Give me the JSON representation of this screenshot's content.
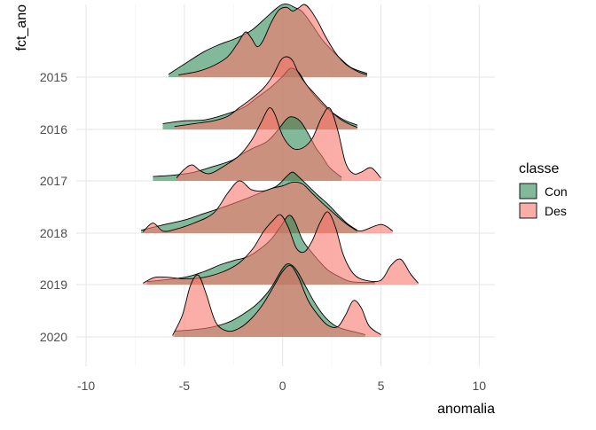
{
  "chart_data": {
    "type": "area",
    "subtype": "ridgeline-density",
    "xlabel": "anomalia",
    "ylabel": "fct_ano",
    "xlim": [
      -10.5,
      10.8
    ],
    "x_ticks": [
      -10,
      -5,
      0,
      5,
      10
    ],
    "x_tick_labels": [
      "-10",
      "-5",
      "0",
      "5",
      "10"
    ],
    "categories": [
      "2015",
      "2016",
      "2017",
      "2018",
      "2019",
      "2020"
    ],
    "grid": true,
    "legend": {
      "title": "classe",
      "position": "right",
      "entries": [
        {
          "label": "Con",
          "color": "#2e8b57"
        },
        {
          "label": "Des",
          "color": "#f8766d"
        }
      ]
    },
    "series": [
      {
        "name": "Con",
        "color": "#2e8b57",
        "ridges": [
          {
            "category": "2015",
            "x": [
              -5.8,
              -5.0,
              -4.0,
              -3.2,
              -2.5,
              -2.0,
              -1.5,
              -0.8,
              -0.3,
              0.0,
              0.3,
              0.6,
              1.0,
              1.5,
              2.0,
              2.5,
              3.0,
              3.5,
              4.3
            ],
            "density": [
              0.04,
              0.18,
              0.35,
              0.45,
              0.52,
              0.58,
              0.66,
              0.83,
              0.95,
              1.0,
              1.0,
              0.96,
              0.9,
              0.72,
              0.52,
              0.37,
              0.24,
              0.13,
              0.05
            ]
          },
          {
            "category": "2016",
            "x": [
              -6.1,
              -5.0,
              -4.0,
              -3.0,
              -2.0,
              -1.3,
              -0.6,
              0.0,
              0.4,
              0.8,
              1.2,
              1.7,
              2.2,
              2.7,
              3.2,
              3.8
            ],
            "density": [
              0.08,
              0.12,
              0.13,
              0.2,
              0.3,
              0.44,
              0.58,
              0.73,
              0.84,
              0.79,
              0.62,
              0.44,
              0.3,
              0.2,
              0.12,
              0.06
            ]
          },
          {
            "category": "2017",
            "x": [
              -6.6,
              -5.5,
              -4.5,
              -3.5,
              -2.6,
              -2.0,
              -1.5,
              -0.8,
              -0.3,
              0.2,
              0.5,
              0.9,
              1.3,
              1.7,
              2.0,
              2.4,
              3.0
            ],
            "density": [
              0.06,
              0.08,
              0.12,
              0.2,
              0.28,
              0.38,
              0.45,
              0.54,
              0.68,
              0.85,
              0.88,
              0.82,
              0.65,
              0.45,
              0.34,
              0.18,
              0.05
            ]
          },
          {
            "category": "2018",
            "x": [
              -7.2,
              -6.0,
              -5.0,
              -4.0,
              -3.0,
              -2.0,
              -1.0,
              -0.3,
              0.2,
              0.5,
              0.8,
              1.3,
              1.8,
              2.3,
              2.8,
              3.3,
              3.8
            ],
            "density": [
              0.04,
              0.12,
              0.18,
              0.27,
              0.36,
              0.46,
              0.57,
              0.65,
              0.78,
              0.84,
              0.78,
              0.65,
              0.52,
              0.4,
              0.26,
              0.13,
              0.04
            ]
          },
          {
            "category": "2019",
            "x": [
              -6.9,
              -5.0,
              -4.0,
              -3.2,
              -2.5,
              -1.8,
              -1.2,
              -0.6,
              -0.1,
              0.3,
              0.6,
              1.0,
              1.4,
              1.8,
              2.3,
              2.8,
              3.5,
              4.7
            ],
            "density": [
              0.04,
              0.1,
              0.18,
              0.27,
              0.33,
              0.38,
              0.48,
              0.62,
              0.8,
              0.95,
              0.88,
              0.62,
              0.47,
              0.34,
              0.2,
              0.12,
              0.04,
              0.03
            ]
          },
          {
            "category": "2020",
            "x": [
              -5.5,
              -4.5,
              -3.5,
              -2.6,
              -1.8,
              -1.2,
              -0.6,
              -0.1,
              0.2,
              0.5,
              0.8,
              1.2,
              1.7,
              2.2,
              2.7,
              3.2,
              3.8,
              4.2
            ],
            "density": [
              0.08,
              0.1,
              0.14,
              0.22,
              0.35,
              0.48,
              0.67,
              0.9,
              1.0,
              0.98,
              0.88,
              0.68,
              0.44,
              0.26,
              0.15,
              0.1,
              0.06,
              0.03
            ]
          }
        ]
      },
      {
        "name": "Des",
        "color": "#f8766d",
        "ridges": [
          {
            "category": "2015",
            "x": [
              -5.3,
              -4.3,
              -3.5,
              -2.8,
              -2.3,
              -1.9,
              -1.6,
              -1.3,
              -1.0,
              -0.6,
              -0.2,
              0.2,
              0.5,
              0.8,
              1.1,
              1.4,
              1.8,
              2.2,
              2.7,
              3.2,
              3.8,
              4.3
            ],
            "density": [
              0.03,
              0.08,
              0.16,
              0.28,
              0.46,
              0.62,
              0.54,
              0.42,
              0.5,
              0.74,
              0.92,
              0.96,
              0.91,
              0.95,
              1.0,
              0.93,
              0.76,
              0.55,
              0.33,
              0.18,
              0.08,
              0.03
            ]
          },
          {
            "category": "2016",
            "x": [
              -5.5,
              -4.5,
              -3.5,
              -2.8,
              -2.2,
              -1.6,
              -1.0,
              -0.5,
              -0.1,
              0.2,
              0.5,
              0.8,
              1.2,
              1.6,
              2.0,
              2.5,
              3.0,
              3.5,
              3.8
            ],
            "density": [
              0.04,
              0.08,
              0.12,
              0.18,
              0.3,
              0.42,
              0.56,
              0.74,
              0.95,
              1.0,
              0.95,
              0.78,
              0.62,
              0.5,
              0.38,
              0.24,
              0.13,
              0.06,
              0.03
            ]
          },
          {
            "category": "2017",
            "x": [
              -5.4,
              -5.0,
              -4.6,
              -4.2,
              -3.7,
              -3.0,
              -2.2,
              -1.6,
              -1.1,
              -0.7,
              -0.4,
              0.0,
              0.5,
              1.0,
              1.5,
              2.0,
              2.4,
              2.8,
              3.2,
              3.6,
              4.0,
              4.5,
              5.0
            ],
            "density": [
              0.04,
              0.16,
              0.22,
              0.14,
              0.1,
              0.2,
              0.35,
              0.55,
              0.8,
              1.0,
              0.92,
              0.62,
              0.45,
              0.45,
              0.58,
              0.88,
              1.0,
              0.7,
              0.25,
              0.1,
              0.12,
              0.18,
              0.04
            ]
          },
          {
            "category": "2018",
            "x": [
              -7.1,
              -6.6,
              -6.1,
              -5.5,
              -4.5,
              -3.5,
              -2.8,
              -2.2,
              -1.6,
              -1.0,
              -0.5,
              0.0,
              0.5,
              1.0,
              1.5,
              2.0,
              2.5,
              3.0,
              3.5,
              4.0,
              5.0,
              5.6
            ],
            "density": [
              0.02,
              0.14,
              0.03,
              0.05,
              0.14,
              0.28,
              0.55,
              0.72,
              0.6,
              0.58,
              0.62,
              0.65,
              0.7,
              0.68,
              0.55,
              0.42,
              0.3,
              0.18,
              0.08,
              0.03,
              0.12,
              0.03
            ]
          },
          {
            "category": "2019",
            "x": [
              -7.1,
              -6.5,
              -5.8,
              -5.0,
              -4.0,
              -3.0,
              -2.2,
              -1.5,
              -1.0,
              -0.5,
              -0.1,
              0.3,
              0.7,
              1.1,
              1.5,
              1.9,
              2.3,
              2.7,
              3.1,
              3.6,
              4.2,
              5.0,
              5.5,
              6.0,
              6.5,
              6.9
            ],
            "density": [
              0.02,
              0.1,
              0.1,
              0.08,
              0.1,
              0.18,
              0.3,
              0.5,
              0.72,
              0.88,
              0.96,
              0.78,
              0.5,
              0.45,
              0.6,
              0.85,
              1.0,
              0.78,
              0.4,
              0.15,
              0.06,
              0.06,
              0.26,
              0.35,
              0.15,
              0.02
            ]
          },
          {
            "category": "2020",
            "x": [
              -5.6,
              -5.1,
              -4.7,
              -4.3,
              -3.9,
              -3.4,
              -2.8,
              -2.2,
              -1.6,
              -1.0,
              -0.4,
              0.0,
              0.4,
              0.8,
              1.3,
              1.8,
              2.3,
              2.8,
              3.2,
              3.6,
              4.0,
              4.4,
              5.0
            ],
            "density": [
              0.02,
              0.3,
              0.7,
              0.85,
              0.6,
              0.2,
              0.08,
              0.12,
              0.25,
              0.45,
              0.72,
              0.9,
              0.98,
              0.82,
              0.5,
              0.3,
              0.16,
              0.14,
              0.3,
              0.5,
              0.4,
              0.15,
              0.03
            ]
          }
        ]
      }
    ]
  }
}
